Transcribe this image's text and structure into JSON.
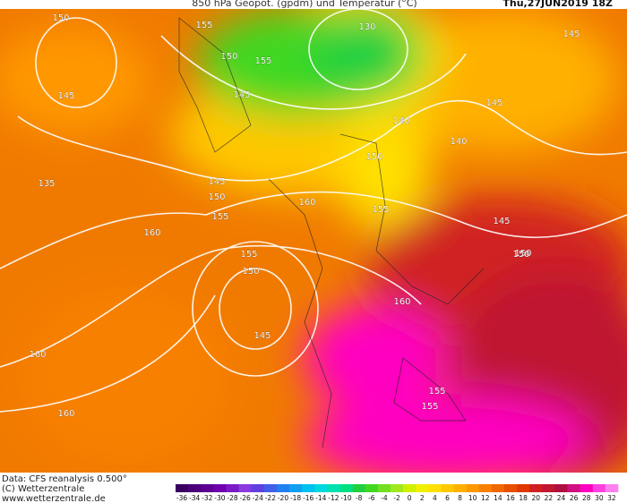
{
  "header": {
    "title": "850 hPa Geopot. (gpdm) und Temperatur (°C)",
    "date": "Thu,27JUN2019 18Z"
  },
  "footer": {
    "source": "Data: CFS reanalysis 0.500°",
    "copyright": "(C) Wetterzentrale",
    "url": "www.wetterzentrale.de"
  },
  "contour_labels": [
    150,
    155,
    130,
    145,
    155,
    150,
    145,
    145,
    140,
    145,
    150,
    145,
    140,
    135,
    150,
    155,
    160,
    160,
    155,
    150,
    145,
    160,
    160,
    160,
    155,
    155,
    150,
    145,
    150,
    155
  ],
  "colorbar": {
    "ticks": [
      -36,
      -34,
      -32,
      -30,
      -28,
      -26,
      -24,
      -22,
      -20,
      -18,
      -16,
      -14,
      -12,
      -10,
      -8,
      -6,
      -4,
      -2,
      0,
      2,
      4,
      6,
      8,
      10,
      12,
      14,
      16,
      18,
      20,
      22,
      24,
      26,
      28,
      30,
      32
    ],
    "colors": [
      "#3a0060",
      "#4b007a",
      "#5c0094",
      "#6e00ae",
      "#7a1ac8",
      "#8a3ae0",
      "#6040e0",
      "#4060e8",
      "#2080f0",
      "#10a0f0",
      "#00c0f0",
      "#00d8e0",
      "#00e0b0",
      "#00e080",
      "#20d040",
      "#40d820",
      "#70e020",
      "#a0e820",
      "#d0f000",
      "#f0f000",
      "#ffe000",
      "#ffc800",
      "#ffb000",
      "#ff9800",
      "#f88000",
      "#f06800",
      "#e85000",
      "#e03800",
      "#d02020",
      "#c01830",
      "#b01040",
      "#d01080",
      "#ff00c0",
      "#ff40e0",
      "#ff80f0"
    ]
  }
}
